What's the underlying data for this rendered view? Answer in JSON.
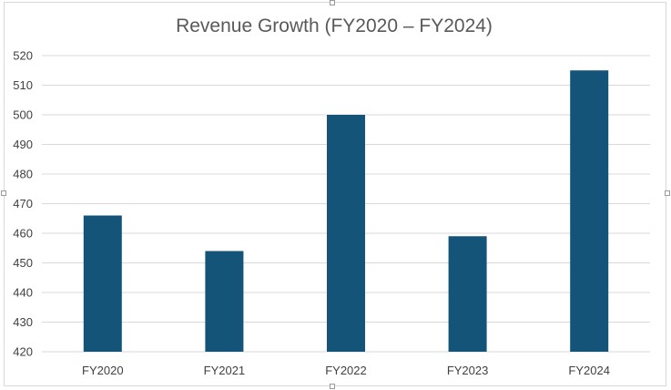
{
  "chart_data": {
    "type": "bar",
    "title": "Revenue Growth (FY2020 – FY2024)",
    "categories": [
      "FY2020",
      "FY2021",
      "FY2022",
      "FY2023",
      "FY2024"
    ],
    "values": [
      466,
      454,
      500,
      459,
      515
    ],
    "xlabel": "",
    "ylabel": "",
    "ylim": [
      420,
      520
    ],
    "yticks": [
      420,
      430,
      440,
      450,
      460,
      470,
      480,
      490,
      500,
      510,
      520
    ],
    "grid": true,
    "legend": "none",
    "bar_color": "#145478",
    "grid_color": "#d9d9d9"
  }
}
